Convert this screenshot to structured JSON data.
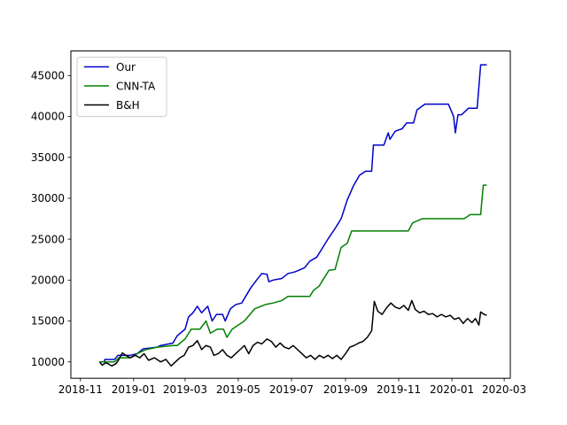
{
  "chart_data": {
    "type": "line",
    "title": "",
    "xlabel": "",
    "ylabel": "",
    "grid": false,
    "legend_position": "top-left",
    "xlim": [
      "2018-10-21",
      "2020-03-08"
    ],
    "ylim": [
      8000,
      48000
    ],
    "x_ticks": [
      "2018-11",
      "2019-01",
      "2019-03",
      "2019-05",
      "2019-07",
      "2019-09",
      "2019-11",
      "2020-01",
      "2020-03"
    ],
    "y_ticks": [
      10000,
      15000,
      20000,
      25000,
      30000,
      35000,
      40000,
      45000
    ],
    "series": [
      {
        "name": "Our",
        "color": "#0000cc",
        "points": [
          [
            "2018-11-23",
            10000
          ],
          [
            "2018-11-28",
            10000
          ],
          [
            "2018-11-29",
            10300
          ],
          [
            "2018-12-10",
            10300
          ],
          [
            "2018-12-14",
            10800
          ],
          [
            "2018-12-28",
            10800
          ],
          [
            "2019-01-05",
            11000
          ],
          [
            "2019-01-12",
            11600
          ],
          [
            "2019-01-28",
            11800
          ],
          [
            "2019-02-01",
            12000
          ],
          [
            "2019-02-15",
            12300
          ],
          [
            "2019-02-20",
            13200
          ],
          [
            "2019-03-01",
            14000
          ],
          [
            "2019-03-05",
            15500
          ],
          [
            "2019-03-10",
            16000
          ],
          [
            "2019-03-15",
            16800
          ],
          [
            "2019-03-20",
            16000
          ],
          [
            "2019-03-27",
            16800
          ],
          [
            "2019-04-01",
            15000
          ],
          [
            "2019-04-06",
            15800
          ],
          [
            "2019-04-13",
            15800
          ],
          [
            "2019-04-16",
            15000
          ],
          [
            "2019-04-22",
            16500
          ],
          [
            "2019-04-28",
            17000
          ],
          [
            "2019-05-05",
            17200
          ],
          [
            "2019-05-15",
            19000
          ],
          [
            "2019-05-22",
            20000
          ],
          [
            "2019-05-28",
            20800
          ],
          [
            "2019-06-03",
            20700
          ],
          [
            "2019-06-05",
            19800
          ],
          [
            "2019-06-10",
            20000
          ],
          [
            "2019-06-20",
            20200
          ],
          [
            "2019-06-27",
            20800
          ],
          [
            "2019-07-05",
            21000
          ],
          [
            "2019-07-16",
            21500
          ],
          [
            "2019-07-22",
            22300
          ],
          [
            "2019-07-30",
            22800
          ],
          [
            "2019-08-06",
            24000
          ],
          [
            "2019-08-13",
            25200
          ],
          [
            "2019-08-20",
            26300
          ],
          [
            "2019-08-27",
            27500
          ],
          [
            "2019-09-03",
            29800
          ],
          [
            "2019-09-10",
            31500
          ],
          [
            "2019-09-17",
            32800
          ],
          [
            "2019-09-24",
            33300
          ],
          [
            "2019-10-01",
            33300
          ],
          [
            "2019-10-03",
            36500
          ],
          [
            "2019-10-15",
            36500
          ],
          [
            "2019-10-20",
            38000
          ],
          [
            "2019-10-22",
            37200
          ],
          [
            "2019-10-28",
            38200
          ],
          [
            "2019-11-05",
            38500
          ],
          [
            "2019-11-10",
            39200
          ],
          [
            "2019-11-18",
            39200
          ],
          [
            "2019-11-22",
            40800
          ],
          [
            "2019-12-01",
            41500
          ],
          [
            "2019-12-20",
            41500
          ],
          [
            "2019-12-28",
            41500
          ],
          [
            "2020-01-03",
            40000
          ],
          [
            "2020-01-05",
            38000
          ],
          [
            "2020-01-08",
            40200
          ],
          [
            "2020-01-12",
            40200
          ],
          [
            "2020-01-20",
            41000
          ],
          [
            "2020-01-30",
            41000
          ],
          [
            "2020-02-03",
            46300
          ],
          [
            "2020-02-10",
            46300
          ]
        ]
      },
      {
        "name": "CNN-TA",
        "color": "#008000",
        "points": [
          [
            "2018-11-23",
            10000
          ],
          [
            "2018-12-10",
            10000
          ],
          [
            "2018-12-15",
            10500
          ],
          [
            "2018-12-28",
            10500
          ],
          [
            "2019-01-05",
            11000
          ],
          [
            "2019-01-15",
            11500
          ],
          [
            "2019-01-28",
            11800
          ],
          [
            "2019-02-15",
            12000
          ],
          [
            "2019-02-20",
            12000
          ],
          [
            "2019-03-01",
            12800
          ],
          [
            "2019-03-08",
            14000
          ],
          [
            "2019-03-18",
            14000
          ],
          [
            "2019-03-25",
            15000
          ],
          [
            "2019-03-30",
            13500
          ],
          [
            "2019-04-07",
            14000
          ],
          [
            "2019-04-14",
            14000
          ],
          [
            "2019-04-18",
            13000
          ],
          [
            "2019-04-24",
            14000
          ],
          [
            "2019-05-01",
            14500
          ],
          [
            "2019-05-08",
            15000
          ],
          [
            "2019-05-12",
            15500
          ],
          [
            "2019-05-20",
            16500
          ],
          [
            "2019-06-01",
            17000
          ],
          [
            "2019-06-10",
            17200
          ],
          [
            "2019-06-20",
            17500
          ],
          [
            "2019-06-27",
            18000
          ],
          [
            "2019-07-08",
            18000
          ],
          [
            "2019-07-22",
            18000
          ],
          [
            "2019-07-26",
            18700
          ],
          [
            "2019-08-02",
            19300
          ],
          [
            "2019-08-06",
            20000
          ],
          [
            "2019-08-13",
            21200
          ],
          [
            "2019-08-20",
            21300
          ],
          [
            "2019-08-27",
            24000
          ],
          [
            "2019-09-03",
            24500
          ],
          [
            "2019-09-08",
            26000
          ],
          [
            "2019-10-01",
            26000
          ],
          [
            "2019-11-01",
            26000
          ],
          [
            "2019-11-12",
            26000
          ],
          [
            "2019-11-17",
            27000
          ],
          [
            "2019-11-28",
            27500
          ],
          [
            "2019-12-15",
            27500
          ],
          [
            "2020-01-15",
            27500
          ],
          [
            "2020-01-22",
            28000
          ],
          [
            "2020-02-03",
            28000
          ],
          [
            "2020-02-06",
            31600
          ],
          [
            "2020-02-10",
            31600
          ]
        ]
      },
      {
        "name": "B&H",
        "color": "#000000",
        "points": [
          [
            "2018-11-23",
            10000
          ],
          [
            "2018-11-26",
            9600
          ],
          [
            "2018-11-30",
            9900
          ],
          [
            "2018-12-04",
            9700
          ],
          [
            "2018-12-07",
            9500
          ],
          [
            "2018-12-12",
            9800
          ],
          [
            "2018-12-15",
            10300
          ],
          [
            "2018-12-19",
            11100
          ],
          [
            "2018-12-23",
            10800
          ],
          [
            "2018-12-28",
            10500
          ],
          [
            "2019-01-03",
            10800
          ],
          [
            "2019-01-08",
            10500
          ],
          [
            "2019-01-13",
            11000
          ],
          [
            "2019-01-18",
            10200
          ],
          [
            "2019-01-25",
            10500
          ],
          [
            "2019-02-01",
            10000
          ],
          [
            "2019-02-07",
            10300
          ],
          [
            "2019-02-13",
            9500
          ],
          [
            "2019-02-18",
            10000
          ],
          [
            "2019-02-23",
            10500
          ],
          [
            "2019-02-28",
            10800
          ],
          [
            "2019-03-05",
            11800
          ],
          [
            "2019-03-10",
            12000
          ],
          [
            "2019-03-15",
            12600
          ],
          [
            "2019-03-20",
            11500
          ],
          [
            "2019-03-25",
            12000
          ],
          [
            "2019-03-30",
            11800
          ],
          [
            "2019-04-03",
            10800
          ],
          [
            "2019-04-08",
            11000
          ],
          [
            "2019-04-13",
            11500
          ],
          [
            "2019-04-18",
            10800
          ],
          [
            "2019-04-23",
            10500
          ],
          [
            "2019-04-28",
            11000
          ],
          [
            "2019-05-03",
            11500
          ],
          [
            "2019-05-08",
            12000
          ],
          [
            "2019-05-13",
            11000
          ],
          [
            "2019-05-18",
            12000
          ],
          [
            "2019-05-23",
            12400
          ],
          [
            "2019-05-28",
            12200
          ],
          [
            "2019-06-03",
            12800
          ],
          [
            "2019-06-08",
            12500
          ],
          [
            "2019-06-13",
            11800
          ],
          [
            "2019-06-18",
            12300
          ],
          [
            "2019-06-23",
            11800
          ],
          [
            "2019-06-28",
            11600
          ],
          [
            "2019-07-03",
            12000
          ],
          [
            "2019-07-08",
            11500
          ],
          [
            "2019-07-13",
            11000
          ],
          [
            "2019-07-18",
            10500
          ],
          [
            "2019-07-23",
            10800
          ],
          [
            "2019-07-28",
            10300
          ],
          [
            "2019-08-02",
            10800
          ],
          [
            "2019-08-07",
            10500
          ],
          [
            "2019-08-12",
            10800
          ],
          [
            "2019-08-17",
            10400
          ],
          [
            "2019-08-22",
            10800
          ],
          [
            "2019-08-27",
            10300
          ],
          [
            "2019-09-01",
            11000
          ],
          [
            "2019-09-06",
            11800
          ],
          [
            "2019-09-11",
            12000
          ],
          [
            "2019-09-16",
            12300
          ],
          [
            "2019-09-21",
            12500
          ],
          [
            "2019-09-26",
            13000
          ],
          [
            "2019-10-01",
            13800
          ],
          [
            "2019-10-04",
            17400
          ],
          [
            "2019-10-08",
            16200
          ],
          [
            "2019-10-13",
            15800
          ],
          [
            "2019-10-18",
            16600
          ],
          [
            "2019-10-23",
            17200
          ],
          [
            "2019-10-28",
            16700
          ],
          [
            "2019-11-02",
            16500
          ],
          [
            "2019-11-07",
            16900
          ],
          [
            "2019-11-12",
            16300
          ],
          [
            "2019-11-16",
            17500
          ],
          [
            "2019-11-20",
            16400
          ],
          [
            "2019-11-25",
            16000
          ],
          [
            "2019-11-30",
            16200
          ],
          [
            "2019-12-05",
            15800
          ],
          [
            "2019-12-10",
            15900
          ],
          [
            "2019-12-15",
            15500
          ],
          [
            "2019-12-20",
            15800
          ],
          [
            "2019-12-25",
            15500
          ],
          [
            "2019-12-30",
            15700
          ],
          [
            "2020-01-04",
            15200
          ],
          [
            "2020-01-09",
            15400
          ],
          [
            "2020-01-14",
            14700
          ],
          [
            "2020-01-19",
            15300
          ],
          [
            "2020-01-24",
            14800
          ],
          [
            "2020-01-28",
            15300
          ],
          [
            "2020-02-01",
            14500
          ],
          [
            "2020-02-03",
            16100
          ],
          [
            "2020-02-07",
            15800
          ],
          [
            "2020-02-10",
            15700
          ]
        ]
      }
    ]
  }
}
